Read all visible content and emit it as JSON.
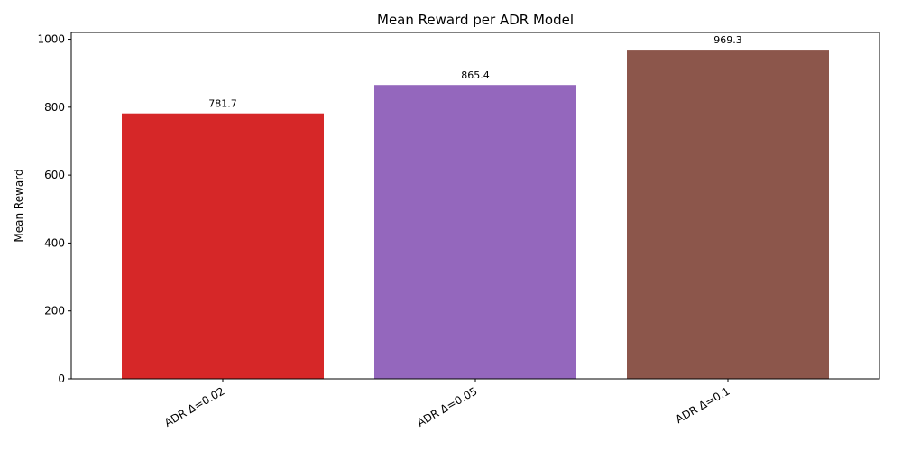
{
  "chart_data": {
    "type": "bar",
    "title": "Mean Reward per ADR Model",
    "xlabel": "",
    "ylabel": "Mean Reward",
    "categories": [
      "ADR Δ=0.02",
      "ADR Δ=0.05",
      "ADR Δ=0.1"
    ],
    "values": [
      781.7,
      865.4,
      969.3
    ],
    "value_labels": [
      "781.7",
      "865.4",
      "969.3"
    ],
    "colors": [
      "#d62728",
      "#9467bd",
      "#8c564b"
    ],
    "ylim": [
      0,
      1020
    ],
    "yticks": [
      0,
      200,
      400,
      600,
      800,
      1000
    ],
    "grid": false,
    "legend": "none"
  }
}
